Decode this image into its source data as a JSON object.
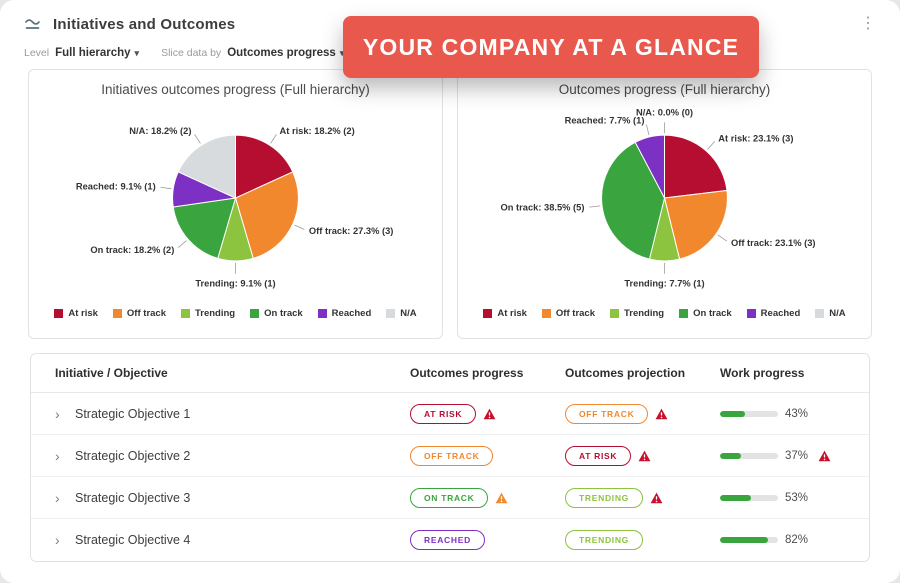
{
  "header": {
    "title": "Initiatives and Outcomes"
  },
  "icons": {
    "kebab": "⋮",
    "chevron_down": "▾",
    "expander": "›"
  },
  "banner": {
    "text": "YOUR COMPANY AT A GLANCE",
    "background": "#e8584c"
  },
  "filters": {
    "level_label": "Level",
    "level_value": "Full hierarchy",
    "slice_label": "Slice data by",
    "slice_value": "Outcomes progress"
  },
  "status_colors": {
    "at-risk": "#b60e31",
    "off-track": "#f2882d",
    "trending": "#8cc440",
    "on-track": "#3aa53f",
    "reached": "#7d30c4",
    "na": "#d8dbdd"
  },
  "warning_colors": {
    "red": "#c8102e",
    "orange": "#f08c2e"
  },
  "work_bar_color": "#3aa53f",
  "chart_data": [
    {
      "type": "pie",
      "title": "Initiatives outcomes progress (Full hierarchy)",
      "legend_position": "bottom",
      "slices": [
        {
          "label": "At risk",
          "pct": 18.2,
          "count": 2,
          "color": "#b60e31"
        },
        {
          "label": "Off track",
          "pct": 27.3,
          "count": 3,
          "color": "#f2882d"
        },
        {
          "label": "Trending",
          "pct": 9.1,
          "count": 1,
          "color": "#8cc440"
        },
        {
          "label": "On track",
          "pct": 18.2,
          "count": 2,
          "color": "#3aa53f"
        },
        {
          "label": "Reached",
          "pct": 9.1,
          "count": 1,
          "color": "#7d30c4"
        },
        {
          "label": "N/A",
          "pct": 18.2,
          "count": 2,
          "color": "#d8dbdd"
        }
      ]
    },
    {
      "type": "pie",
      "title": "Outcomes progress (Full hierarchy)",
      "legend_position": "bottom",
      "slices": [
        {
          "label": "At risk",
          "pct": 23.1,
          "count": 3,
          "color": "#b60e31"
        },
        {
          "label": "Off track",
          "pct": 23.1,
          "count": 3,
          "color": "#f2882d"
        },
        {
          "label": "Trending",
          "pct": 7.7,
          "count": 1,
          "color": "#8cc440"
        },
        {
          "label": "On track",
          "pct": 38.5,
          "count": 5,
          "color": "#3aa53f"
        },
        {
          "label": "Reached",
          "pct": 7.7,
          "count": 1,
          "color": "#7d30c4"
        },
        {
          "label": "N/A",
          "pct": 0.0,
          "count": 0,
          "color": "#d8dbdd"
        }
      ]
    }
  ],
  "table": {
    "columns": [
      "Initiative / Objective",
      "Outcomes progress",
      "Outcomes projection",
      "Work progress"
    ],
    "rows": [
      {
        "name": "Strategic Objective 1",
        "progress": {
          "label": "AT RISK",
          "variant": "at-risk",
          "warning": "red"
        },
        "projection": {
          "label": "OFF TRACK",
          "variant": "off-track",
          "warning": "red"
        },
        "work": {
          "pct": 43,
          "warning": null
        }
      },
      {
        "name": "Strategic Objective 2",
        "progress": {
          "label": "OFF TRACK",
          "variant": "off-track",
          "warning": null
        },
        "projection": {
          "label": "AT RISK",
          "variant": "at-risk",
          "warning": "red"
        },
        "work": {
          "pct": 37,
          "warning": "red"
        }
      },
      {
        "name": "Strategic Objective 3",
        "progress": {
          "label": "ON TRACK",
          "variant": "on-track",
          "warning": "orange"
        },
        "projection": {
          "label": "TRENDING",
          "variant": "trending",
          "warning": "red"
        },
        "work": {
          "pct": 53,
          "warning": null
        }
      },
      {
        "name": "Strategic Objective 4",
        "progress": {
          "label": "REACHED",
          "variant": "reached",
          "warning": null
        },
        "projection": {
          "label": "TRENDING",
          "variant": "trending",
          "warning": null
        },
        "work": {
          "pct": 82,
          "warning": null
        }
      }
    ]
  }
}
